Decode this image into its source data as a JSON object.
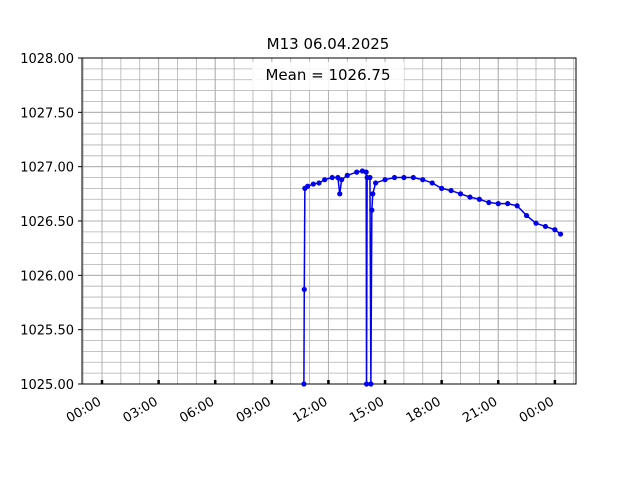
{
  "chart_data": {
    "type": "line",
    "title": "M13 06.04.2025",
    "annotation": "Mean = 1026.75",
    "series": [
      {
        "color": "#0000ee",
        "x": [
          10.7,
          10.72,
          10.75,
          10.9,
          11.2,
          11.5,
          11.8,
          12.2,
          12.5,
          12.6,
          12.7,
          13.0,
          13.5,
          13.8,
          14.0,
          14.02,
          14.05,
          14.2,
          14.25,
          14.3,
          14.35,
          14.5,
          15.0,
          15.5,
          16.0,
          16.5,
          17.0,
          17.5,
          18.0,
          18.5,
          19.0,
          19.5,
          20.0,
          20.5,
          21.0,
          21.5,
          22.0,
          22.5,
          23.0,
          23.5,
          24.0,
          24.3
        ],
        "values": [
          1025.0,
          1025.87,
          1026.8,
          1026.82,
          1026.84,
          1026.85,
          1026.88,
          1026.9,
          1026.9,
          1026.75,
          1026.88,
          1026.92,
          1026.95,
          1026.96,
          1026.95,
          1025.0,
          1026.9,
          1026.9,
          1025.0,
          1026.6,
          1026.75,
          1026.85,
          1026.88,
          1026.9,
          1026.9,
          1026.9,
          1026.88,
          1026.85,
          1026.8,
          1026.78,
          1026.75,
          1026.72,
          1026.7,
          1026.67,
          1026.66,
          1026.66,
          1026.64,
          1026.55,
          1026.48,
          1026.45,
          1026.42,
          1026.38
        ]
      }
    ],
    "xlim": [
      -1.06,
      25.12
    ],
    "ylim": [
      1025,
      1028
    ],
    "xticks": [
      {
        "value": 0,
        "label": "00:00"
      },
      {
        "value": 3,
        "label": "03:00"
      },
      {
        "value": 6,
        "label": "06:00"
      },
      {
        "value": 9,
        "label": "09:00"
      },
      {
        "value": 12,
        "label": "12:00"
      },
      {
        "value": 15,
        "label": "15:00"
      },
      {
        "value": 18,
        "label": "18:00"
      },
      {
        "value": 21,
        "label": "21:00"
      },
      {
        "value": 24,
        "label": "00:00"
      }
    ],
    "yticks": [
      {
        "value": 1025,
        "label": "1025.00"
      },
      {
        "value": 1025.5,
        "label": "1025.50"
      },
      {
        "value": 1026,
        "label": "1026.00"
      },
      {
        "value": 1026.5,
        "label": "1026.50"
      },
      {
        "value": 1027,
        "label": "1027.00"
      },
      {
        "value": 1027.5,
        "label": "1027.50"
      },
      {
        "value": 1028,
        "label": "1028.00"
      }
    ],
    "grid": true
  }
}
